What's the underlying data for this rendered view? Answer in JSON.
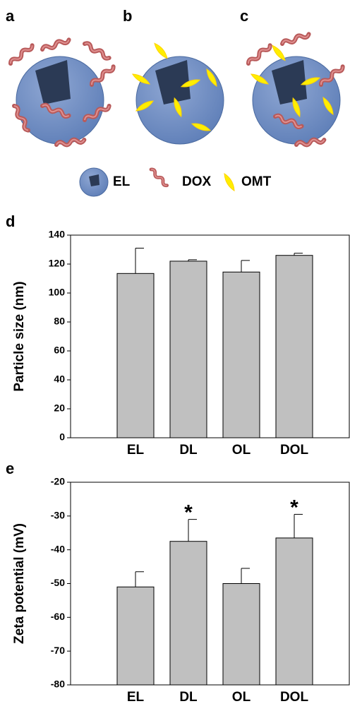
{
  "illustration": {
    "panels": [
      "a",
      "b",
      "c"
    ],
    "legend": [
      "EL",
      "DOX",
      "OMT"
    ]
  },
  "chart_data": [
    {
      "type": "bar",
      "panel_label": "d",
      "y_label": "Particle size (nm)",
      "categories": [
        "EL",
        "DL",
        "OL",
        "DOL"
      ],
      "values": [
        113.5,
        122,
        114.5,
        126
      ],
      "errors": [
        17.5,
        1,
        8,
        1.5
      ],
      "color": "#c0c0c0",
      "ylim": [
        0,
        140
      ],
      "yticks": [
        0,
        20,
        40,
        60,
        80,
        100,
        120,
        140
      ]
    },
    {
      "type": "bar",
      "panel_label": "e",
      "y_label": "Zeta potential (mV)",
      "categories": [
        "EL",
        "DL",
        "OL",
        "DOL"
      ],
      "values": [
        -51,
        -37.5,
        -50,
        -36.5
      ],
      "errors": [
        4.5,
        6.5,
        4.5,
        7
      ],
      "color": "#c0c0c0",
      "ylim": [
        -80,
        -20
      ],
      "yticks": [
        -80,
        -70,
        -60,
        -50,
        -40,
        -30,
        -20
      ],
      "annotations": [
        {
          "category": "DL",
          "text": "*"
        },
        {
          "category": "DOL",
          "text": "*"
        }
      ]
    }
  ]
}
